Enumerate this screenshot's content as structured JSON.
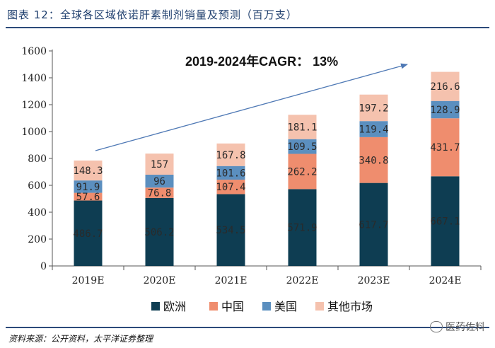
{
  "figure_title": "图表 12：全球各区域依诺肝素制剂销量及预测（百万支）",
  "source_note": "资料来源：公开资料，太平洋证券整理",
  "watermark": "医药佐料",
  "chart_data": {
    "type": "bar",
    "stacked": true,
    "categories": [
      "2019E",
      "2020E",
      "2021E",
      "2022E",
      "2023E",
      "2024E"
    ],
    "series": [
      {
        "name": "欧洲",
        "color": "#0e3d52",
        "values": [
          486.7,
          506.2,
          534.5,
          571.9,
          617.7,
          667.1
        ],
        "labels": [
          "486.7",
          "506.2",
          "534.5",
          "571.9",
          "617.7",
          "667.1"
        ]
      },
      {
        "name": "中国",
        "color": "#ef8d6e",
        "values": [
          57.6,
          76.8,
          107.4,
          262.2,
          340.8,
          431.7
        ],
        "labels": [
          "57.6",
          "76.8",
          "107.4",
          "262.2",
          "340.8",
          "431.7"
        ]
      },
      {
        "name": "美国",
        "color": "#5b8fbf",
        "values": [
          91.9,
          96,
          101.6,
          109.5,
          119.4,
          128.9
        ],
        "labels": [
          "91.9",
          "96",
          "101.6",
          "109.5",
          "119.4",
          "128.9"
        ]
      },
      {
        "name": "其他市场",
        "color": "#f5c2ae",
        "values": [
          148.3,
          157,
          167.8,
          181.1,
          197.2,
          216.6
        ],
        "labels": [
          "148.3",
          "157",
          "167.8",
          "181.1",
          "197.2",
          "216.6"
        ]
      }
    ],
    "ylim": [
      0,
      1600
    ],
    "yticks": [
      0,
      200,
      400,
      600,
      800,
      1000,
      1200,
      1400,
      1600
    ],
    "ytick_labels": [
      "0",
      "200",
      "400",
      "600",
      "800",
      "1000",
      "1200",
      "1400",
      "1600"
    ],
    "grid": false,
    "legend": "bottom",
    "annotation": {
      "text": "2019-2024年CAGR：  13%",
      "arrow_color": "#4f79b5"
    }
  }
}
